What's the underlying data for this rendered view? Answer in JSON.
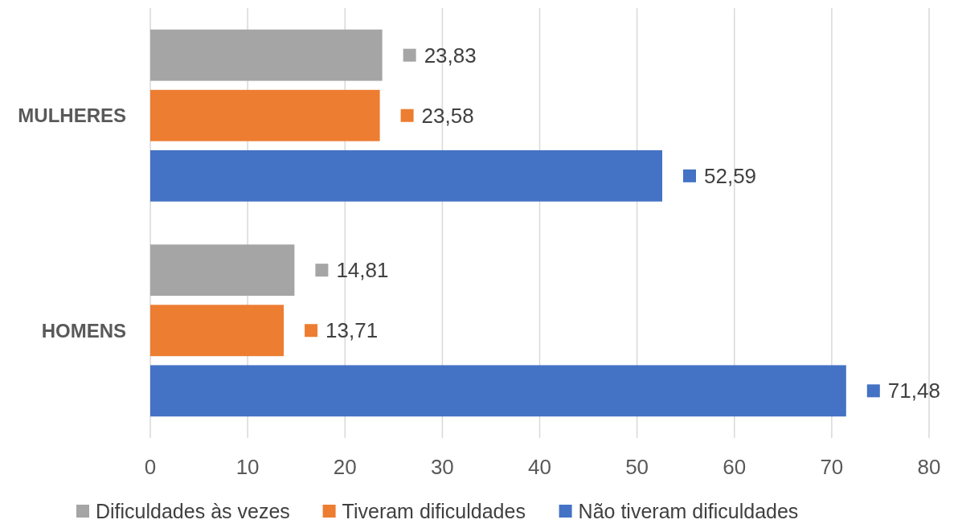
{
  "chart_data": {
    "type": "bar",
    "orientation": "horizontal",
    "categories": [
      "MULHERES",
      "HOMENS"
    ],
    "series": [
      {
        "name": "Dificuldades às vezes",
        "color": "#a5a5a5",
        "values": [
          23.83,
          14.81
        ],
        "value_labels": [
          "23,83",
          "14,81"
        ]
      },
      {
        "name": "Tiveram dificuldades",
        "color": "#ed7d31",
        "values": [
          23.58,
          13.71
        ],
        "value_labels": [
          "23,58",
          "13,71"
        ]
      },
      {
        "name": "Não tiveram dificuldades",
        "color": "#4472c4",
        "values": [
          52.59,
          71.48
        ],
        "value_labels": [
          "52,59",
          "71,48"
        ]
      }
    ],
    "xlim": [
      0,
      80
    ],
    "xticks": [
      0,
      10,
      20,
      30,
      40,
      50,
      60,
      70,
      80
    ],
    "grid": "x",
    "legend": "bottom"
  }
}
